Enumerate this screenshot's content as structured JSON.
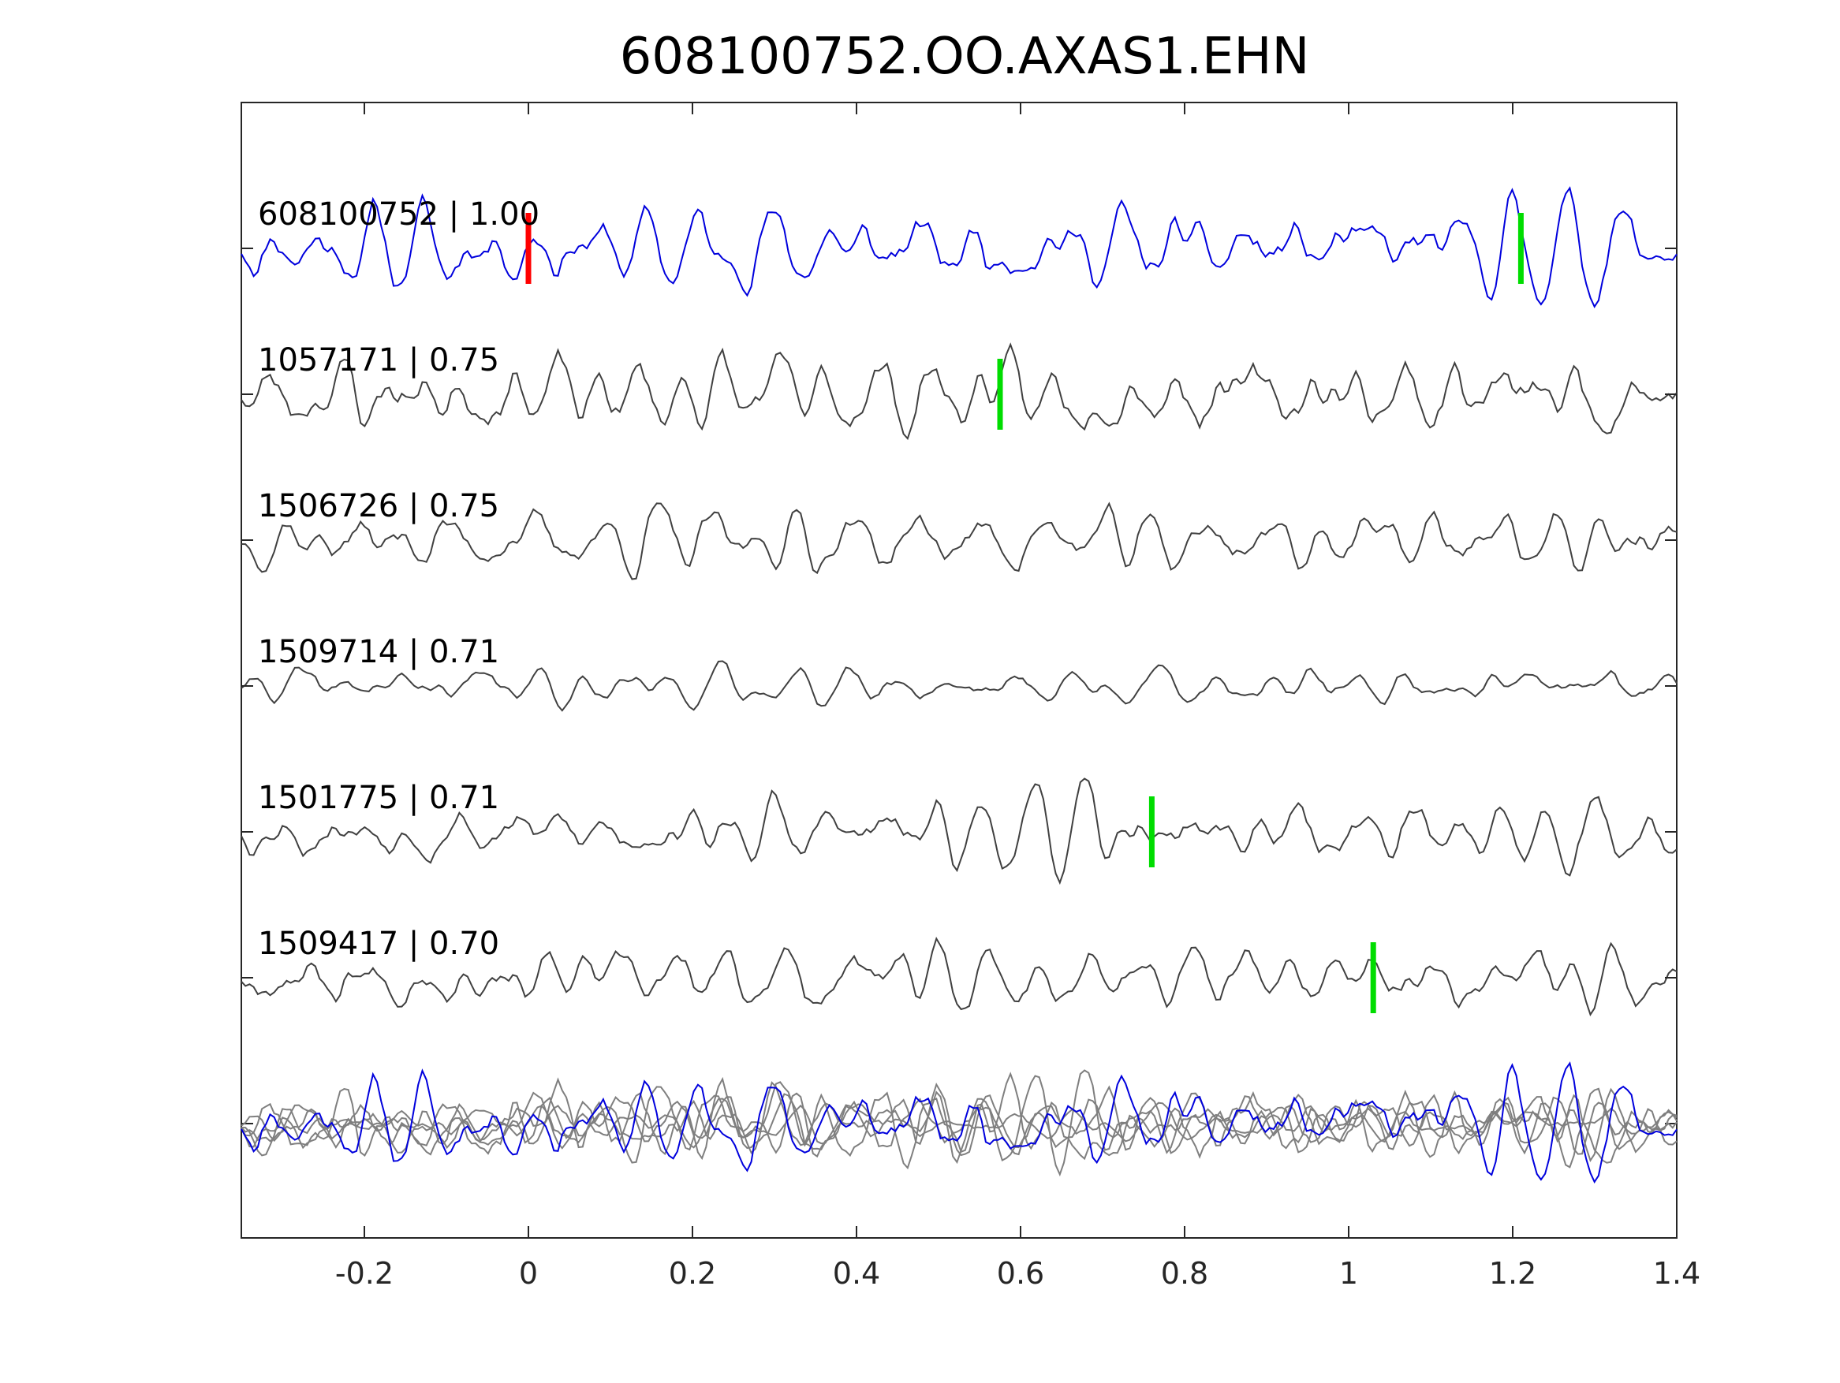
{
  "chart_data": {
    "type": "line",
    "title": "608100752.OO.AXAS1.EHN",
    "xlabel": "",
    "ylabel": "",
    "xlim": [
      -0.35,
      1.4
    ],
    "x_ticks": [
      -0.2,
      0,
      0.2,
      0.4,
      0.6,
      0.8,
      1,
      1.2,
      1.4
    ],
    "x_tick_labels": [
      "-0.2",
      "0",
      "0.2",
      "0.4",
      "0.6",
      "0.8",
      "1",
      "1.2",
      "1.4"
    ],
    "grid": false,
    "legend": "none",
    "sample_count": 350,
    "colors": {
      "reference": "#0000dd",
      "matched": "#404040",
      "overlay": "#7f7f7f",
      "pick_reference": "#ff0000",
      "pick_matched": "#00dd00"
    },
    "traces": [
      {
        "label": "608100752 | 1.00",
        "id": "608100752",
        "correlation": 1.0,
        "is_reference": true,
        "pick_time": 0.0,
        "pick_color": "red",
        "second_pick_time": 1.21,
        "amplitude": 0.85,
        "seed": 11
      },
      {
        "label": "1057171 | 0.75",
        "id": "1057171",
        "correlation": 0.75,
        "is_reference": false,
        "pick_time": 0.575,
        "pick_color": "green",
        "amplitude": 0.7,
        "seed": 23
      },
      {
        "label": "1506726 | 0.75",
        "id": "1506726",
        "correlation": 0.75,
        "is_reference": false,
        "pick_time": null,
        "pick_color": null,
        "amplitude": 0.55,
        "seed": 37
      },
      {
        "label": "1509714 | 0.71",
        "id": "1509714",
        "correlation": 0.71,
        "is_reference": false,
        "pick_time": null,
        "pick_color": null,
        "amplitude": 0.35,
        "seed": 41
      },
      {
        "label": "1501775 | 0.71",
        "id": "1501775",
        "correlation": 0.71,
        "is_reference": false,
        "pick_time": 0.76,
        "pick_color": "green",
        "amplitude": 0.75,
        "seed": 53
      },
      {
        "label": "1509417 | 0.70",
        "id": "1509417",
        "correlation": 0.7,
        "is_reference": false,
        "pick_time": 1.03,
        "pick_color": "green",
        "amplitude": 0.55,
        "seed": 67
      }
    ],
    "overlay": {
      "description_in_figure": "",
      "includes_reference": true
    }
  }
}
